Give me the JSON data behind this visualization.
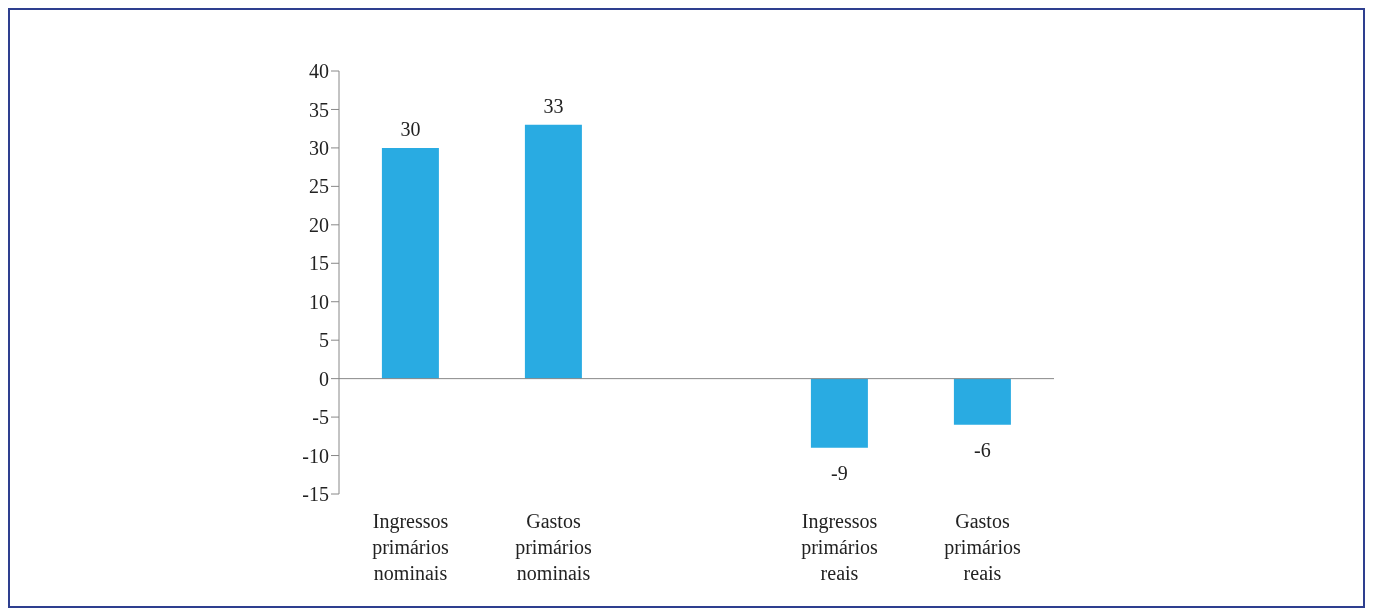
{
  "chart_data": {
    "type": "bar",
    "categories": [
      "Ingressos primários nominais",
      "Gastos primários nominais",
      null,
      "Ingressos primários reais",
      "Gastos primários reais"
    ],
    "values": [
      30,
      33,
      null,
      -9,
      -6
    ],
    "color": "#29abe2",
    "ylim": [
      -15,
      40
    ],
    "yticks": [
      -15,
      -10,
      -5,
      0,
      5,
      10,
      15,
      20,
      25,
      30,
      35,
      40
    ],
    "data_labels": true
  }
}
